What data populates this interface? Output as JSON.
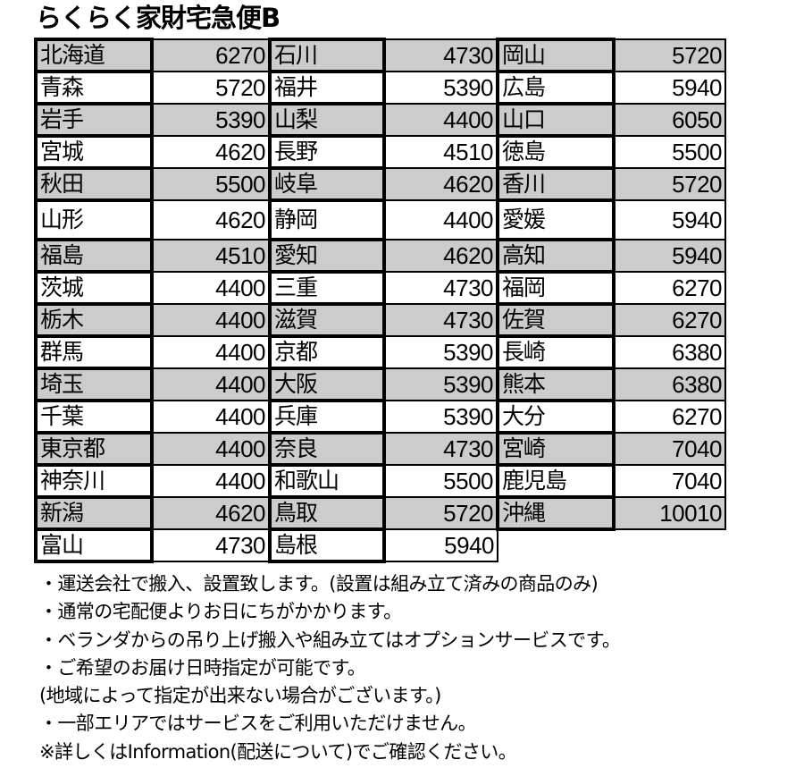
{
  "title": "らくらく家財宅急便B",
  "colors": {
    "row_shade": "#cccccc",
    "border": "#000000"
  },
  "columns": [
    [
      [
        "北海道",
        "6270"
      ],
      [
        "青森",
        "5720"
      ],
      [
        "岩手",
        "5390"
      ],
      [
        "宮城",
        "4620"
      ],
      [
        "秋田",
        "5500"
      ],
      [
        "山形",
        "4620"
      ],
      [
        "福島",
        "4510"
      ],
      [
        "茨城",
        "4400"
      ],
      [
        "栃木",
        "4400"
      ],
      [
        "群馬",
        "4400"
      ],
      [
        "埼玉",
        "4400"
      ],
      [
        "千葉",
        "4400"
      ],
      [
        "東京都",
        "4400"
      ],
      [
        "神奈川",
        "4400"
      ],
      [
        "新潟",
        "4620"
      ],
      [
        "富山",
        "4730"
      ]
    ],
    [
      [
        "石川",
        "4730"
      ],
      [
        "福井",
        "5390"
      ],
      [
        "山梨",
        "4400"
      ],
      [
        "長野",
        "4510"
      ],
      [
        "岐阜",
        "4620"
      ],
      [
        "静岡",
        "4400"
      ],
      [
        "愛知",
        "4620"
      ],
      [
        "三重",
        "4730"
      ],
      [
        "滋賀",
        "4730"
      ],
      [
        "京都",
        "5390"
      ],
      [
        "大阪",
        "5390"
      ],
      [
        "兵庫",
        "5390"
      ],
      [
        "奈良",
        "4730"
      ],
      [
        "和歌山",
        "5500"
      ],
      [
        "鳥取",
        "5720"
      ],
      [
        "島根",
        "5940"
      ]
    ],
    [
      [
        "岡山",
        "5720"
      ],
      [
        "広島",
        "5940"
      ],
      [
        "山口",
        "6050"
      ],
      [
        "徳島",
        "5500"
      ],
      [
        "香川",
        "5720"
      ],
      [
        "愛媛",
        "5940"
      ],
      [
        "高知",
        "5940"
      ],
      [
        "福岡",
        "6270"
      ],
      [
        "佐賀",
        "6270"
      ],
      [
        "長崎",
        "6380"
      ],
      [
        "熊本",
        "6380"
      ],
      [
        "大分",
        "6270"
      ],
      [
        "宮崎",
        "7040"
      ],
      [
        "鹿児島",
        "7040"
      ],
      [
        "沖縄",
        "10010"
      ]
    ]
  ],
  "notes": [
    "・運送会社で搬入、設置致します。(設置は組み立て済みの商品のみ)",
    "・通常の宅配便よりお日にちがかかります。",
    "・ベランダからの吊り上げ搬入や組み立てはオプションサービスです。",
    "・ご希望のお届け日時指定が可能です。",
    "(地域によって指定が出来ない場合がございます。)",
    "・一部エリアではサービスをご利用いただけません。",
    "※詳しくはInformation(配送について)でご確認ください。"
  ]
}
